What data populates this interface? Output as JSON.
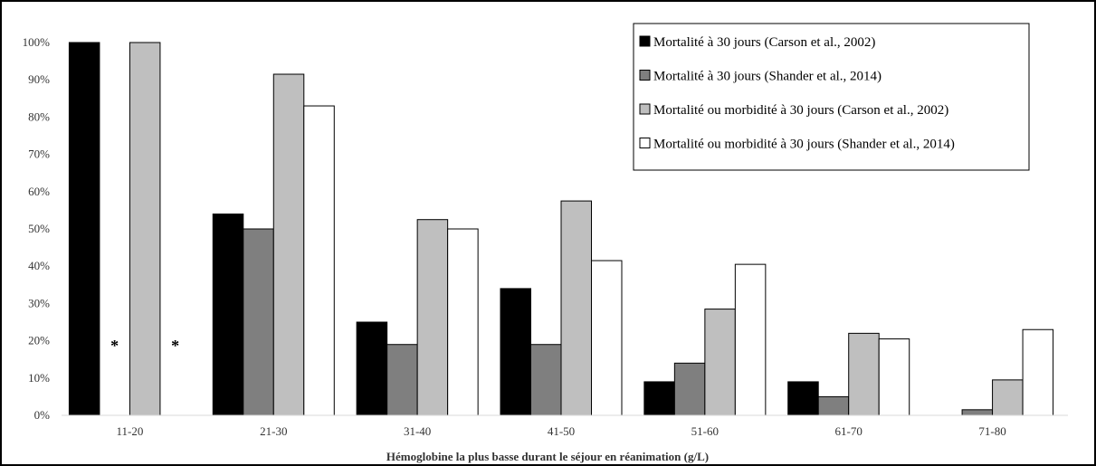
{
  "chart_data": {
    "type": "bar",
    "title": "",
    "xlabel": "Hémoglobine la plus basse durant le séjour en réanimation (g/L)",
    "ylabel": "",
    "categories": [
      "11-20",
      "21-30",
      "31-40",
      "41-50",
      "51-60",
      "61-70",
      "71-80"
    ],
    "ylim": [
      0,
      100
    ],
    "ytick_labels": [
      "0%",
      "10%",
      "20%",
      "30%",
      "40%",
      "50%",
      "60%",
      "70%",
      "80%",
      "90%",
      "100%"
    ],
    "grid": false,
    "legend_position": "top-right",
    "series": [
      {
        "name": "Mortalité à 30 jours (Carson et al., 2002)",
        "color": "#000000",
        "values": [
          100,
          54,
          25,
          34,
          9,
          9,
          0
        ]
      },
      {
        "name": "Mortalité à 30 jours (Shander et al., 2014)",
        "color": "#7f7f7f",
        "values": [
          null,
          50,
          19,
          19,
          14,
          5,
          1.5
        ]
      },
      {
        "name": "Mortalité ou morbidité à 30 jours (Carson et al., 2002)",
        "color": "#bfbfbf",
        "values": [
          100,
          91.5,
          52.5,
          57.5,
          28.5,
          22,
          9.5
        ]
      },
      {
        "name": "Mortalité ou morbidité à 30 jours (Shander et al., 2014)",
        "color": "#ffffff",
        "values": [
          null,
          83,
          50,
          41.5,
          40.5,
          20.5,
          23
        ]
      }
    ],
    "missing_marker": "*"
  }
}
